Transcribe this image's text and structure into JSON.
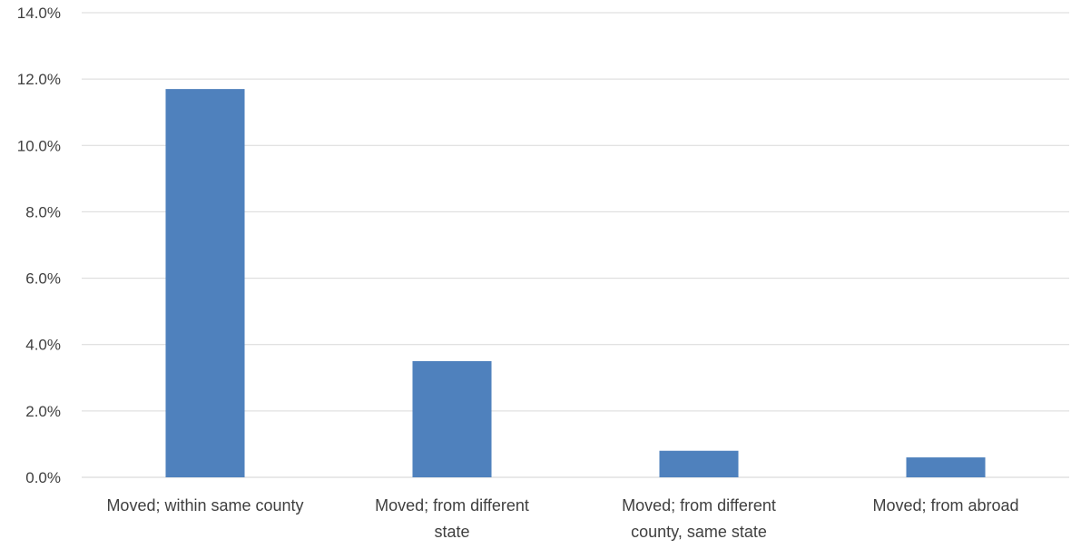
{
  "chart_data": {
    "type": "bar",
    "title": "",
    "xlabel": "",
    "ylabel": "",
    "categories": [
      [
        "Moved; within same county"
      ],
      [
        "Moved; from different",
        "state"
      ],
      [
        "Moved; from different",
        "county, same state"
      ],
      [
        "Moved; from abroad"
      ]
    ],
    "values": [
      11.7,
      3.5,
      0.8,
      0.6
    ],
    "ylim": [
      0,
      14
    ],
    "yticks": [
      0,
      2,
      4,
      6,
      8,
      10,
      12,
      14
    ],
    "ytick_labels": [
      "0.0%",
      "2.0%",
      "4.0%",
      "6.0%",
      "8.0%",
      "10.0%",
      "12.0%",
      "14.0%"
    ],
    "grid": true,
    "legend": "none",
    "colors": {
      "bar": "#4f81bd",
      "grid": "#d9d9d9",
      "text": "#404040"
    }
  }
}
